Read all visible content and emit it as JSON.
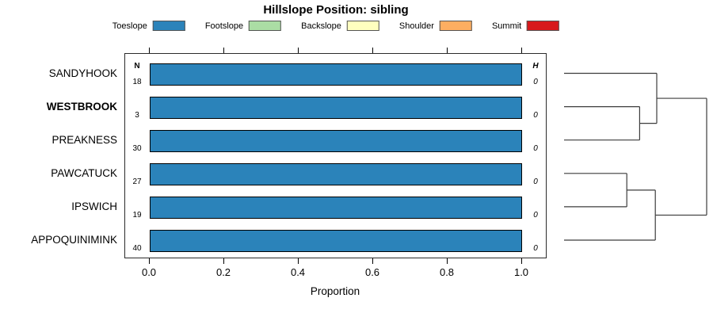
{
  "title": "Hillslope Position: sibling",
  "legend": {
    "items": [
      {
        "label": "Toeslope",
        "color": "#2B83BA"
      },
      {
        "label": "Footslope",
        "color": "#ABDDA4"
      },
      {
        "label": "Backslope",
        "color": "#FFFFBF"
      },
      {
        "label": "Shoulder",
        "color": "#FDAE61"
      },
      {
        "label": "Summit",
        "color": "#D7191C"
      }
    ]
  },
  "columns": {
    "n": "N",
    "h": "H"
  },
  "axis": {
    "xlabel": "Proportion",
    "tick_labels": [
      "0.0",
      "0.2",
      "0.4",
      "0.6",
      "0.8",
      "1.0"
    ]
  },
  "chart_data": {
    "type": "bar",
    "subtype": "horizontal-stacked-proportion-with-dendrogram",
    "title": "Hillslope Position: sibling",
    "xlabel": "Proportion",
    "xlim": [
      0,
      1
    ],
    "x_ticks": [
      0.0,
      0.2,
      0.4,
      0.6,
      0.8,
      1.0
    ],
    "legend_position": "top",
    "legend": [
      {
        "label": "Toeslope",
        "color": "#2B83BA"
      },
      {
        "label": "Footslope",
        "color": "#ABDDA4"
      },
      {
        "label": "Backslope",
        "color": "#FFFFBF"
      },
      {
        "label": "Shoulder",
        "color": "#FDAE61"
      },
      {
        "label": "Summit",
        "color": "#D7191C"
      }
    ],
    "categories": [
      "SANDYHOOK",
      "WESTBROOK",
      "PREAKNESS",
      "PAWCATUCK",
      "IPSWICH",
      "APPOQUINIMINK"
    ],
    "rows": [
      {
        "label": "SANDYHOOK",
        "n": 18,
        "h": 0,
        "bold": false,
        "segments": [
          {
            "name": "Toeslope",
            "value": 1.0
          }
        ]
      },
      {
        "label": "WESTBROOK",
        "n": 3,
        "h": 0,
        "bold": true,
        "segments": [
          {
            "name": "Toeslope",
            "value": 1.0
          }
        ]
      },
      {
        "label": "PREAKNESS",
        "n": 30,
        "h": 0,
        "bold": false,
        "segments": [
          {
            "name": "Toeslope",
            "value": 1.0
          }
        ]
      },
      {
        "label": "PAWCATUCK",
        "n": 27,
        "h": 0,
        "bold": false,
        "segments": [
          {
            "name": "Toeslope",
            "value": 1.0
          }
        ]
      },
      {
        "label": "IPSWICH",
        "n": 19,
        "h": 0,
        "bold": false,
        "segments": [
          {
            "name": "Toeslope",
            "value": 1.0
          }
        ]
      },
      {
        "label": "APPOQUINIMINK",
        "n": 40,
        "h": 0,
        "bold": false,
        "segments": [
          {
            "name": "Toeslope",
            "value": 1.0
          }
        ]
      }
    ],
    "dendrogram": {
      "leaf_order": [
        "SANDYHOOK",
        "WESTBROOK",
        "PREAKNESS",
        "PAWCATUCK",
        "IPSWICH",
        "APPOQUINIMINK"
      ],
      "tree": {
        "h": 1.0,
        "children": [
          {
            "h": 0.65,
            "children": [
              {
                "leaf": 0
              },
              {
                "h": 0.53,
                "children": [
                  {
                    "leaf": 1
                  },
                  {
                    "leaf": 2
                  }
                ]
              }
            ]
          },
          {
            "h": 0.64,
            "children": [
              {
                "h": 0.44,
                "children": [
                  {
                    "leaf": 3
                  },
                  {
                    "leaf": 4
                  }
                ]
              },
              {
                "leaf": 5
              }
            ]
          }
        ]
      },
      "row_centers": [
        32.5,
        74.6,
        116.7,
        158.8,
        200.9,
        243
      ],
      "leaf_x": 22,
      "width": 180
    }
  }
}
